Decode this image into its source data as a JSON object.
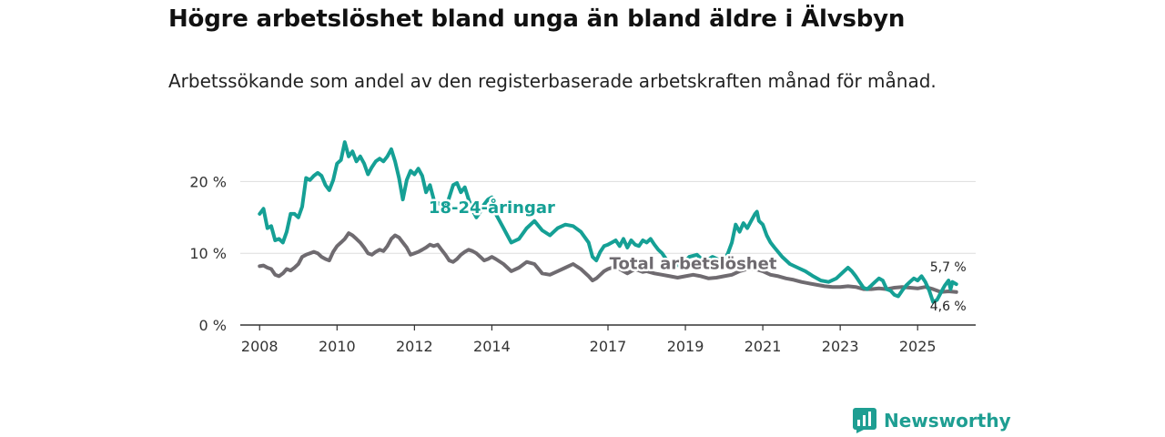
{
  "title": "Högre arbetslöshet bland unga än bland äldre i Älvsbyn",
  "subtitle": "Arbetssökande som andel av den registerbaserade arbetskraften månad för månad.",
  "brand": {
    "name": "Newsworthy",
    "icon": "newsworthy-logo-icon"
  },
  "colors": {
    "youth": "#15a095",
    "total": "#6f6b70",
    "grid": "#dddddd",
    "axis": "#333333"
  },
  "chart_data": {
    "type": "line",
    "x_range": [
      2007.5,
      2026.5
    ],
    "y_range": [
      0,
      25
    ],
    "y_ticks": [
      {
        "value": 0,
        "label": "0 %"
      },
      {
        "value": 10,
        "label": "10 %"
      },
      {
        "value": 20,
        "label": "20 %"
      }
    ],
    "x_ticks": [
      {
        "value": 2008,
        "label": "2008"
      },
      {
        "value": 2010,
        "label": "2010"
      },
      {
        "value": 2012,
        "label": "2012"
      },
      {
        "value": 2014,
        "label": "2014"
      },
      {
        "value": 2017,
        "label": "2017"
      },
      {
        "value": 2019,
        "label": "2019"
      },
      {
        "value": 2021,
        "label": "2021"
      },
      {
        "value": 2023,
        "label": "2023"
      },
      {
        "value": 2025,
        "label": "2025"
      }
    ],
    "series": [
      {
        "name": "18-24-åringar",
        "color": "#15a095",
        "end_label": "5,7 %",
        "points": [
          [
            2008.0,
            15.5
          ],
          [
            2008.1,
            16.2
          ],
          [
            2008.2,
            13.5
          ],
          [
            2008.3,
            13.8
          ],
          [
            2008.4,
            11.8
          ],
          [
            2008.5,
            12.0
          ],
          [
            2008.6,
            11.5
          ],
          [
            2008.7,
            13.0
          ],
          [
            2008.8,
            15.5
          ],
          [
            2008.9,
            15.5
          ],
          [
            2009.0,
            15.0
          ],
          [
            2009.1,
            16.5
          ],
          [
            2009.2,
            20.5
          ],
          [
            2009.3,
            20.2
          ],
          [
            2009.4,
            20.8
          ],
          [
            2009.5,
            21.2
          ],
          [
            2009.6,
            20.8
          ],
          [
            2009.7,
            19.5
          ],
          [
            2009.8,
            18.8
          ],
          [
            2009.9,
            20.2
          ],
          [
            2010.0,
            22.5
          ],
          [
            2010.1,
            23.0
          ],
          [
            2010.2,
            25.5
          ],
          [
            2010.3,
            23.5
          ],
          [
            2010.4,
            24.2
          ],
          [
            2010.5,
            22.8
          ],
          [
            2010.6,
            23.5
          ],
          [
            2010.7,
            22.5
          ],
          [
            2010.8,
            21.0
          ],
          [
            2010.9,
            22.0
          ],
          [
            2011.0,
            22.8
          ],
          [
            2011.1,
            23.2
          ],
          [
            2011.2,
            22.8
          ],
          [
            2011.3,
            23.5
          ],
          [
            2011.4,
            24.5
          ],
          [
            2011.5,
            22.8
          ],
          [
            2011.6,
            20.5
          ],
          [
            2011.7,
            17.5
          ],
          [
            2011.8,
            20.2
          ],
          [
            2011.9,
            21.5
          ],
          [
            2012.0,
            21.0
          ],
          [
            2012.1,
            21.8
          ],
          [
            2012.2,
            20.8
          ],
          [
            2012.3,
            18.5
          ],
          [
            2012.4,
            19.5
          ],
          [
            2012.5,
            17.5
          ],
          [
            2012.6,
            17.0
          ],
          [
            2012.7,
            16.8
          ],
          [
            2012.8,
            16.2
          ],
          [
            2012.9,
            17.8
          ],
          [
            2013.0,
            19.5
          ],
          [
            2013.1,
            19.8
          ],
          [
            2013.2,
            18.5
          ],
          [
            2013.3,
            19.2
          ],
          [
            2013.4,
            17.5
          ],
          [
            2013.5,
            16.0
          ],
          [
            2013.6,
            15.0
          ],
          [
            2013.7,
            15.8
          ],
          [
            2013.8,
            16.8
          ],
          [
            2013.9,
            17.5
          ],
          [
            2014.0,
            17.8
          ],
          [
            2014.1,
            15.5
          ],
          [
            2014.3,
            13.5
          ],
          [
            2014.5,
            11.5
          ],
          [
            2014.7,
            12.0
          ],
          [
            2014.9,
            13.5
          ],
          [
            2015.1,
            14.5
          ],
          [
            2015.3,
            13.2
          ],
          [
            2015.5,
            12.5
          ],
          [
            2015.7,
            13.5
          ],
          [
            2015.9,
            14.0
          ],
          [
            2016.1,
            13.8
          ],
          [
            2016.3,
            13.0
          ],
          [
            2016.5,
            11.5
          ],
          [
            2016.6,
            9.5
          ],
          [
            2016.7,
            9.0
          ],
          [
            2016.8,
            10.2
          ],
          [
            2016.9,
            11.0
          ],
          [
            2017.0,
            11.2
          ],
          [
            2017.1,
            11.5
          ],
          [
            2017.2,
            11.8
          ],
          [
            2017.3,
            11.0
          ],
          [
            2017.4,
            12.0
          ],
          [
            2017.5,
            10.8
          ],
          [
            2017.6,
            11.8
          ],
          [
            2017.7,
            11.2
          ],
          [
            2017.8,
            11.0
          ],
          [
            2017.9,
            11.8
          ],
          [
            2018.0,
            11.5
          ],
          [
            2018.1,
            12.0
          ],
          [
            2018.2,
            11.2
          ],
          [
            2018.3,
            10.5
          ],
          [
            2018.4,
            10.0
          ],
          [
            2018.5,
            9.2
          ],
          [
            2018.7,
            8.5
          ],
          [
            2018.9,
            8.2
          ],
          [
            2019.1,
            9.5
          ],
          [
            2019.3,
            9.8
          ],
          [
            2019.5,
            8.8
          ],
          [
            2019.7,
            9.5
          ],
          [
            2019.9,
            9.0
          ],
          [
            2020.0,
            9.0
          ],
          [
            2020.1,
            10.0
          ],
          [
            2020.2,
            11.5
          ],
          [
            2020.3,
            14.0
          ],
          [
            2020.4,
            13.0
          ],
          [
            2020.5,
            14.2
          ],
          [
            2020.6,
            13.5
          ],
          [
            2020.7,
            14.5
          ],
          [
            2020.8,
            15.5
          ],
          [
            2020.85,
            15.8
          ],
          [
            2020.9,
            14.5
          ],
          [
            2021.0,
            14.0
          ],
          [
            2021.1,
            12.5
          ],
          [
            2021.2,
            11.5
          ],
          [
            2021.3,
            10.8
          ],
          [
            2021.5,
            9.5
          ],
          [
            2021.7,
            8.5
          ],
          [
            2021.9,
            8.0
          ],
          [
            2022.1,
            7.5
          ],
          [
            2022.3,
            6.8
          ],
          [
            2022.5,
            6.2
          ],
          [
            2022.7,
            6.0
          ],
          [
            2022.9,
            6.5
          ],
          [
            2023.1,
            7.5
          ],
          [
            2023.2,
            8.0
          ],
          [
            2023.3,
            7.5
          ],
          [
            2023.4,
            6.8
          ],
          [
            2023.5,
            6.0
          ],
          [
            2023.6,
            5.2
          ],
          [
            2023.7,
            5.0
          ],
          [
            2023.8,
            5.5
          ],
          [
            2023.9,
            6.0
          ],
          [
            2024.0,
            6.5
          ],
          [
            2024.1,
            6.2
          ],
          [
            2024.2,
            5.0
          ],
          [
            2024.3,
            4.8
          ],
          [
            2024.4,
            4.2
          ],
          [
            2024.5,
            4.0
          ],
          [
            2024.6,
            4.8
          ],
          [
            2024.7,
            5.5
          ],
          [
            2024.8,
            6.0
          ],
          [
            2024.9,
            6.5
          ],
          [
            2025.0,
            6.2
          ],
          [
            2025.1,
            6.8
          ],
          [
            2025.2,
            6.0
          ],
          [
            2025.3,
            4.8
          ],
          [
            2025.4,
            3.2
          ],
          [
            2025.5,
            3.5
          ],
          [
            2025.6,
            4.5
          ],
          [
            2025.7,
            5.5
          ],
          [
            2025.8,
            6.2
          ],
          [
            2025.85,
            5.0
          ],
          [
            2025.9,
            6.0
          ],
          [
            2026.0,
            5.7
          ]
        ]
      },
      {
        "name": "Total arbetslöshet",
        "color": "#6f6b70",
        "end_label": "4,6 %",
        "points": [
          [
            2008.0,
            8.2
          ],
          [
            2008.1,
            8.3
          ],
          [
            2008.2,
            8.0
          ],
          [
            2008.3,
            7.8
          ],
          [
            2008.4,
            7.0
          ],
          [
            2008.5,
            6.8
          ],
          [
            2008.6,
            7.2
          ],
          [
            2008.7,
            7.8
          ],
          [
            2008.8,
            7.6
          ],
          [
            2008.9,
            8.0
          ],
          [
            2009.0,
            8.5
          ],
          [
            2009.1,
            9.5
          ],
          [
            2009.2,
            9.8
          ],
          [
            2009.3,
            10.0
          ],
          [
            2009.4,
            10.2
          ],
          [
            2009.5,
            10.0
          ],
          [
            2009.6,
            9.5
          ],
          [
            2009.7,
            9.2
          ],
          [
            2009.8,
            9.0
          ],
          [
            2009.9,
            10.2
          ],
          [
            2010.0,
            11.0
          ],
          [
            2010.1,
            11.5
          ],
          [
            2010.2,
            12.0
          ],
          [
            2010.3,
            12.8
          ],
          [
            2010.4,
            12.5
          ],
          [
            2010.5,
            12.0
          ],
          [
            2010.6,
            11.5
          ],
          [
            2010.7,
            10.8
          ],
          [
            2010.8,
            10.0
          ],
          [
            2010.9,
            9.8
          ],
          [
            2011.0,
            10.2
          ],
          [
            2011.1,
            10.5
          ],
          [
            2011.2,
            10.3
          ],
          [
            2011.3,
            11.0
          ],
          [
            2011.4,
            12.0
          ],
          [
            2011.5,
            12.5
          ],
          [
            2011.6,
            12.2
          ],
          [
            2011.7,
            11.5
          ],
          [
            2011.8,
            10.8
          ],
          [
            2011.9,
            9.8
          ],
          [
            2012.0,
            10.0
          ],
          [
            2012.1,
            10.2
          ],
          [
            2012.2,
            10.5
          ],
          [
            2012.3,
            10.8
          ],
          [
            2012.4,
            11.2
          ],
          [
            2012.5,
            11.0
          ],
          [
            2012.6,
            11.2
          ],
          [
            2012.7,
            10.5
          ],
          [
            2012.8,
            9.8
          ],
          [
            2012.9,
            9.0
          ],
          [
            2013.0,
            8.8
          ],
          [
            2013.1,
            9.2
          ],
          [
            2013.2,
            9.8
          ],
          [
            2013.3,
            10.2
          ],
          [
            2013.4,
            10.5
          ],
          [
            2013.5,
            10.3
          ],
          [
            2013.6,
            10.0
          ],
          [
            2013.7,
            9.5
          ],
          [
            2013.8,
            9.0
          ],
          [
            2013.9,
            9.2
          ],
          [
            2014.0,
            9.5
          ],
          [
            2014.1,
            9.2
          ],
          [
            2014.3,
            8.5
          ],
          [
            2014.5,
            7.5
          ],
          [
            2014.7,
            8.0
          ],
          [
            2014.9,
            8.8
          ],
          [
            2015.1,
            8.5
          ],
          [
            2015.3,
            7.2
          ],
          [
            2015.5,
            7.0
          ],
          [
            2015.7,
            7.5
          ],
          [
            2015.9,
            8.0
          ],
          [
            2016.1,
            8.5
          ],
          [
            2016.3,
            7.8
          ],
          [
            2016.5,
            6.8
          ],
          [
            2016.6,
            6.2
          ],
          [
            2016.7,
            6.5
          ],
          [
            2016.8,
            7.0
          ],
          [
            2016.9,
            7.5
          ],
          [
            2017.0,
            7.8
          ],
          [
            2017.1,
            8.0
          ],
          [
            2017.2,
            8.2
          ],
          [
            2017.3,
            7.8
          ],
          [
            2017.4,
            7.5
          ],
          [
            2017.5,
            7.2
          ],
          [
            2017.6,
            7.5
          ],
          [
            2017.7,
            7.8
          ],
          [
            2017.8,
            7.6
          ],
          [
            2017.9,
            7.4
          ],
          [
            2018.0,
            7.5
          ],
          [
            2018.2,
            7.2
          ],
          [
            2018.4,
            7.0
          ],
          [
            2018.6,
            6.8
          ],
          [
            2018.8,
            6.6
          ],
          [
            2019.0,
            6.8
          ],
          [
            2019.2,
            7.0
          ],
          [
            2019.4,
            6.8
          ],
          [
            2019.6,
            6.5
          ],
          [
            2019.8,
            6.6
          ],
          [
            2020.0,
            6.8
          ],
          [
            2020.2,
            7.0
          ],
          [
            2020.4,
            7.5
          ],
          [
            2020.6,
            7.8
          ],
          [
            2020.8,
            7.8
          ],
          [
            2021.0,
            7.5
          ],
          [
            2021.2,
            7.0
          ],
          [
            2021.4,
            6.8
          ],
          [
            2021.6,
            6.5
          ],
          [
            2021.8,
            6.3
          ],
          [
            2022.0,
            6.0
          ],
          [
            2022.2,
            5.8
          ],
          [
            2022.4,
            5.6
          ],
          [
            2022.6,
            5.4
          ],
          [
            2022.8,
            5.3
          ],
          [
            2023.0,
            5.3
          ],
          [
            2023.2,
            5.4
          ],
          [
            2023.4,
            5.3
          ],
          [
            2023.6,
            5.0
          ],
          [
            2023.8,
            5.0
          ],
          [
            2024.0,
            5.1
          ],
          [
            2024.2,
            5.0
          ],
          [
            2024.4,
            5.2
          ],
          [
            2024.6,
            5.3
          ],
          [
            2024.8,
            5.2
          ],
          [
            2025.0,
            5.1
          ],
          [
            2025.2,
            5.3
          ],
          [
            2025.4,
            5.0
          ],
          [
            2025.6,
            4.6
          ],
          [
            2025.8,
            4.7
          ],
          [
            2026.0,
            4.6
          ]
        ]
      }
    ],
    "series_labels": [
      {
        "text": "18-24-åringar",
        "series": 0,
        "x": 2014.0,
        "y": 15.6
      },
      {
        "text": "Total arbetslöshet",
        "series": 1,
        "x": 2019.2,
        "y": 7.8
      }
    ]
  }
}
